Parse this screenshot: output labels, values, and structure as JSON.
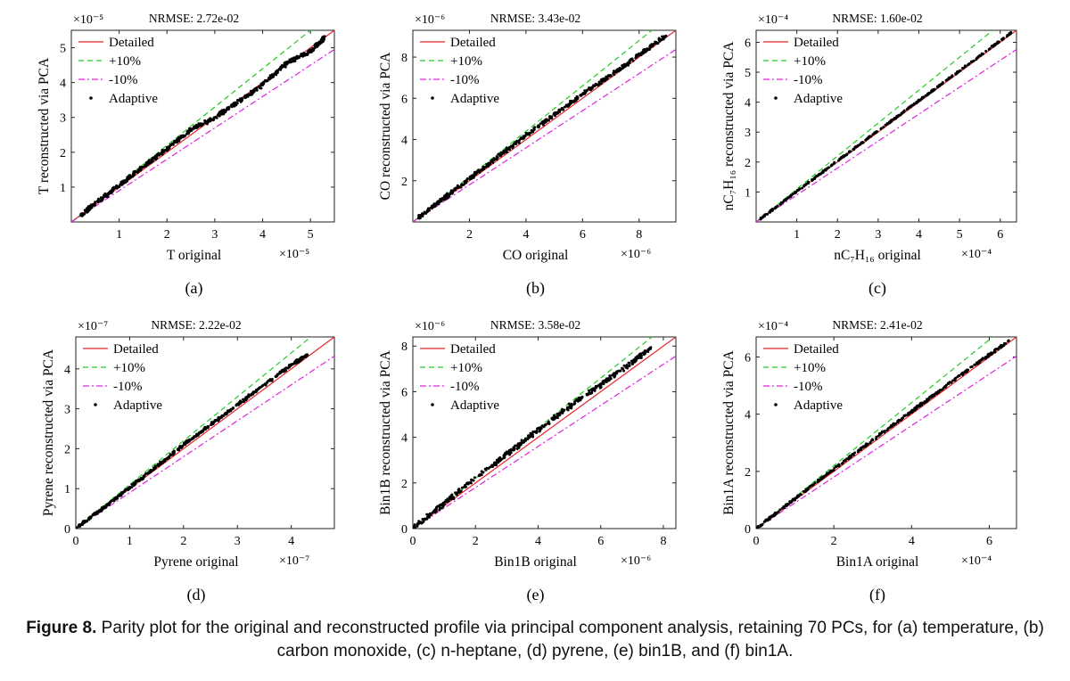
{
  "caption": {
    "label": "Figure 8.",
    "text": "Parity plot for the original and reconstructed profile via principal component analysis, retaining 70 PCs, for (a) temperature, (b) carbon monoxide, (c) n-heptane, (d) pyrene, (e) bin1B, and (f) bin1A."
  },
  "legend_labels": [
    "Detailed",
    "+10%",
    "-10%",
    "Adaptive"
  ],
  "colors": {
    "detailed": "#e8252b",
    "plus10": "#22cc22",
    "minus10": "#e020e0",
    "adaptive": "#000000"
  },
  "chart_data": [
    {
      "id": "a",
      "panel_label": "(a)",
      "type": "scatter",
      "title": "NRMSE: 2.72e-02",
      "xlabel": "T original",
      "ylabel": "T reconstructed via PCA",
      "multiplier": "×10⁻⁵",
      "xlim": [
        0,
        5.5
      ],
      "ylim": [
        0,
        5.5
      ],
      "xticks": [
        1,
        2,
        3,
        4,
        5
      ],
      "yticks": [
        1,
        2,
        3,
        4,
        5
      ],
      "scatter_profile": [
        [
          0.2,
          0.2
        ],
        [
          0.5,
          0.52
        ],
        [
          1.0,
          1.05
        ],
        [
          1.5,
          1.58
        ],
        [
          2.0,
          2.1
        ],
        [
          2.5,
          2.65
        ],
        [
          3.0,
          3.0
        ],
        [
          3.5,
          3.45
        ],
        [
          4.0,
          3.95
        ],
        [
          4.5,
          4.55
        ],
        [
          5.0,
          4.9
        ],
        [
          5.3,
          5.3
        ]
      ],
      "scatter_spread": 0.12
    },
    {
      "id": "b",
      "panel_label": "(b)",
      "type": "scatter",
      "title": "NRMSE: 3.43e-02",
      "xlabel": "CO original",
      "ylabel": "CO reconstructed via PCA",
      "multiplier": "×10⁻⁶",
      "xlim": [
        0,
        9.3
      ],
      "ylim": [
        0,
        9.3
      ],
      "xticks": [
        2,
        4,
        6,
        8
      ],
      "yticks": [
        2,
        4,
        6,
        8
      ],
      "scatter_profile": [
        [
          0.2,
          0.2
        ],
        [
          1.0,
          1.05
        ],
        [
          2.0,
          2.1
        ],
        [
          3.0,
          3.15
        ],
        [
          4.0,
          4.2
        ],
        [
          5.0,
          5.2
        ],
        [
          6.0,
          6.2
        ],
        [
          7.0,
          7.1
        ],
        [
          8.0,
          8.1
        ],
        [
          9.0,
          9.1
        ]
      ],
      "scatter_spread": 0.18
    },
    {
      "id": "c",
      "panel_label": "(c)",
      "type": "scatter",
      "title": "NRMSE: 1.60e-02",
      "xlabel": "nC₇H₁₆ original",
      "ylabel": "nC₇H₁₆ reconstructed via PCA",
      "multiplier": "×10⁻⁴",
      "xlim": [
        0,
        6.4
      ],
      "ylim": [
        0,
        6.4
      ],
      "xticks": [
        1,
        2,
        3,
        4,
        5,
        6
      ],
      "yticks": [
        1,
        2,
        3,
        4,
        5,
        6
      ],
      "scatter_profile": [
        [
          0.1,
          0.1
        ],
        [
          1.0,
          1.02
        ],
        [
          2.0,
          2.04
        ],
        [
          3.0,
          3.05
        ],
        [
          4.0,
          4.05
        ],
        [
          5.0,
          5.05
        ],
        [
          6.3,
          6.35
        ]
      ],
      "scatter_spread": 0.05
    },
    {
      "id": "d",
      "panel_label": "(d)",
      "type": "scatter",
      "title": "NRMSE: 2.22e-02",
      "xlabel": "Pyrene original",
      "ylabel": "Pyrene reconstructed via PCA",
      "multiplier": "×10⁻⁷",
      "xlim": [
        0,
        4.8
      ],
      "ylim": [
        0,
        4.8
      ],
      "xticks": [
        0,
        1,
        2,
        3,
        4
      ],
      "yticks": [
        0,
        1,
        2,
        3,
        4
      ],
      "scatter_profile": [
        [
          0.0,
          0.0
        ],
        [
          0.5,
          0.5
        ],
        [
          1.0,
          1.02
        ],
        [
          1.5,
          1.55
        ],
        [
          2.0,
          2.1
        ],
        [
          2.5,
          2.6
        ],
        [
          3.0,
          3.1
        ],
        [
          3.5,
          3.6
        ],
        [
          4.0,
          4.1
        ],
        [
          4.3,
          4.35
        ]
      ],
      "scatter_spread": 0.07
    },
    {
      "id": "e",
      "panel_label": "(e)",
      "type": "scatter",
      "title": "NRMSE: 3.58e-02",
      "xlabel": "Bin1B original",
      "ylabel": "Bin1B reconstructed via PCA",
      "multiplier": "×10⁻⁶",
      "xlim": [
        0,
        8.4
      ],
      "ylim": [
        0,
        8.4
      ],
      "xticks": [
        0,
        2,
        4,
        6,
        8
      ],
      "yticks": [
        0,
        2,
        4,
        6,
        8
      ],
      "scatter_profile": [
        [
          0.0,
          0.0
        ],
        [
          1.0,
          1.1
        ],
        [
          2.0,
          2.2
        ],
        [
          3.0,
          3.25
        ],
        [
          4.0,
          4.3
        ],
        [
          5.0,
          5.35
        ],
        [
          6.0,
          6.3
        ],
        [
          7.0,
          7.3
        ],
        [
          7.6,
          7.9
        ]
      ],
      "scatter_spread": 0.2
    },
    {
      "id": "f",
      "panel_label": "(f)",
      "type": "scatter",
      "title": "NRMSE: 2.41e-02",
      "xlabel": "Bin1A original",
      "ylabel": "Bin1A reconstructed via PCA",
      "multiplier": "×10⁻⁴",
      "xlim": [
        0,
        6.7
      ],
      "ylim": [
        0,
        6.7
      ],
      "xticks": [
        0,
        2,
        4,
        6
      ],
      "yticks": [
        0,
        2,
        4,
        6
      ],
      "scatter_profile": [
        [
          0.0,
          0.0
        ],
        [
          1.0,
          1.05
        ],
        [
          2.0,
          2.08
        ],
        [
          3.0,
          3.1
        ],
        [
          4.0,
          4.1
        ],
        [
          4.5,
          4.6
        ],
        [
          5.5,
          5.6
        ],
        [
          6.5,
          6.55
        ]
      ],
      "scatter_spread": 0.08
    }
  ]
}
